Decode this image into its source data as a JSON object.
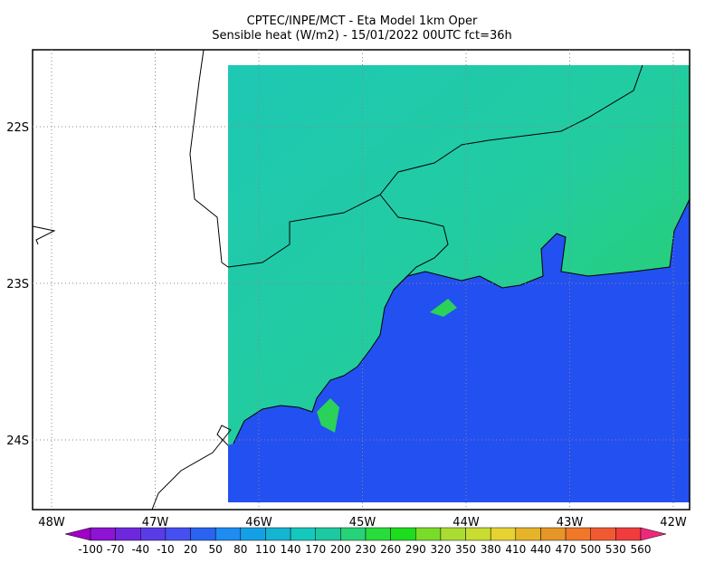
{
  "title": [
    "CPTEC/INPE/MCT -  Eta Model 1km Oper",
    "Sensible heat (W/m2) - 15/01/2022 00UTC fct=36h"
  ],
  "lon_labels": [
    "48W",
    "47W",
    "46W",
    "45W",
    "44W",
    "43W",
    "42W"
  ],
  "lat_labels": [
    "22S",
    "23S",
    "24S"
  ],
  "colorbar": {
    "labels": [
      -100,
      -70,
      -40,
      -10,
      20,
      50,
      80,
      110,
      140,
      170,
      200,
      230,
      260,
      290,
      320,
      350,
      380,
      410,
      440,
      470,
      500,
      530,
      560
    ],
    "colors": [
      "#a000c8",
      "#8c14d2",
      "#6e28dc",
      "#5a3ce6",
      "#4650f0",
      "#2864f0",
      "#1e8cf0",
      "#14a0e6",
      "#14b4d2",
      "#14c8be",
      "#1ec8a0",
      "#28d278",
      "#28dc3c",
      "#1edc1e",
      "#78dc28",
      "#aadc32",
      "#c8dc32",
      "#e6d232",
      "#e6b428",
      "#e69628",
      "#f07828",
      "#f05a32",
      "#f03c3c",
      "#f0287d"
    ]
  }
}
